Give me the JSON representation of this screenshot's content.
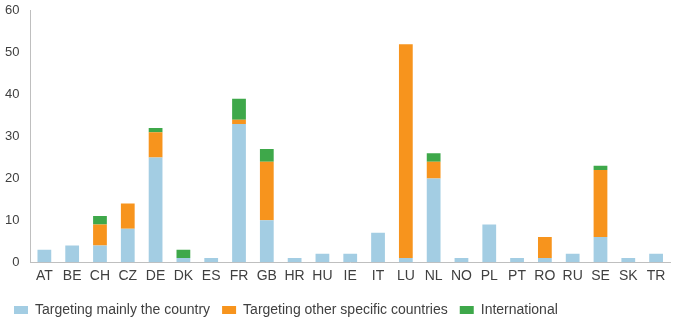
{
  "chart_data": {
    "type": "bar",
    "categories": [
      "AT",
      "BE",
      "CH",
      "CZ",
      "DE",
      "DK",
      "ES",
      "FR",
      "GB",
      "HR",
      "HU",
      "IE",
      "IT",
      "LU",
      "NL",
      "NO",
      "PL",
      "PT",
      "RO",
      "RU",
      "SE",
      "SK",
      "TR"
    ],
    "series": [
      {
        "name": "Targeting mainly the country",
        "color": "#a3cde3",
        "values": [
          3,
          4,
          4,
          8,
          25,
          1,
          1,
          33,
          10,
          1,
          2,
          2,
          7,
          1,
          20,
          1,
          9,
          1,
          1,
          2,
          6,
          1,
          2
        ]
      },
      {
        "name": "Targeting other specific countries",
        "color": "#f7941d",
        "values": [
          0,
          0,
          5,
          6,
          6,
          0,
          0,
          1,
          14,
          0,
          0,
          0,
          0,
          51,
          4,
          0,
          0,
          0,
          5,
          0,
          16,
          0,
          0
        ]
      },
      {
        "name": "International",
        "color": "#3ea84a",
        "values": [
          0,
          0,
          2,
          0,
          1,
          2,
          0,
          5,
          3,
          0,
          0,
          0,
          0,
          0,
          2,
          0,
          0,
          0,
          0,
          0,
          1,
          0,
          0
        ]
      }
    ],
    "ylim": [
      0,
      60
    ],
    "yticks": [
      0,
      10,
      20,
      30,
      40,
      50,
      60
    ],
    "stacked": true,
    "grid": false,
    "legend": "bottom"
  }
}
